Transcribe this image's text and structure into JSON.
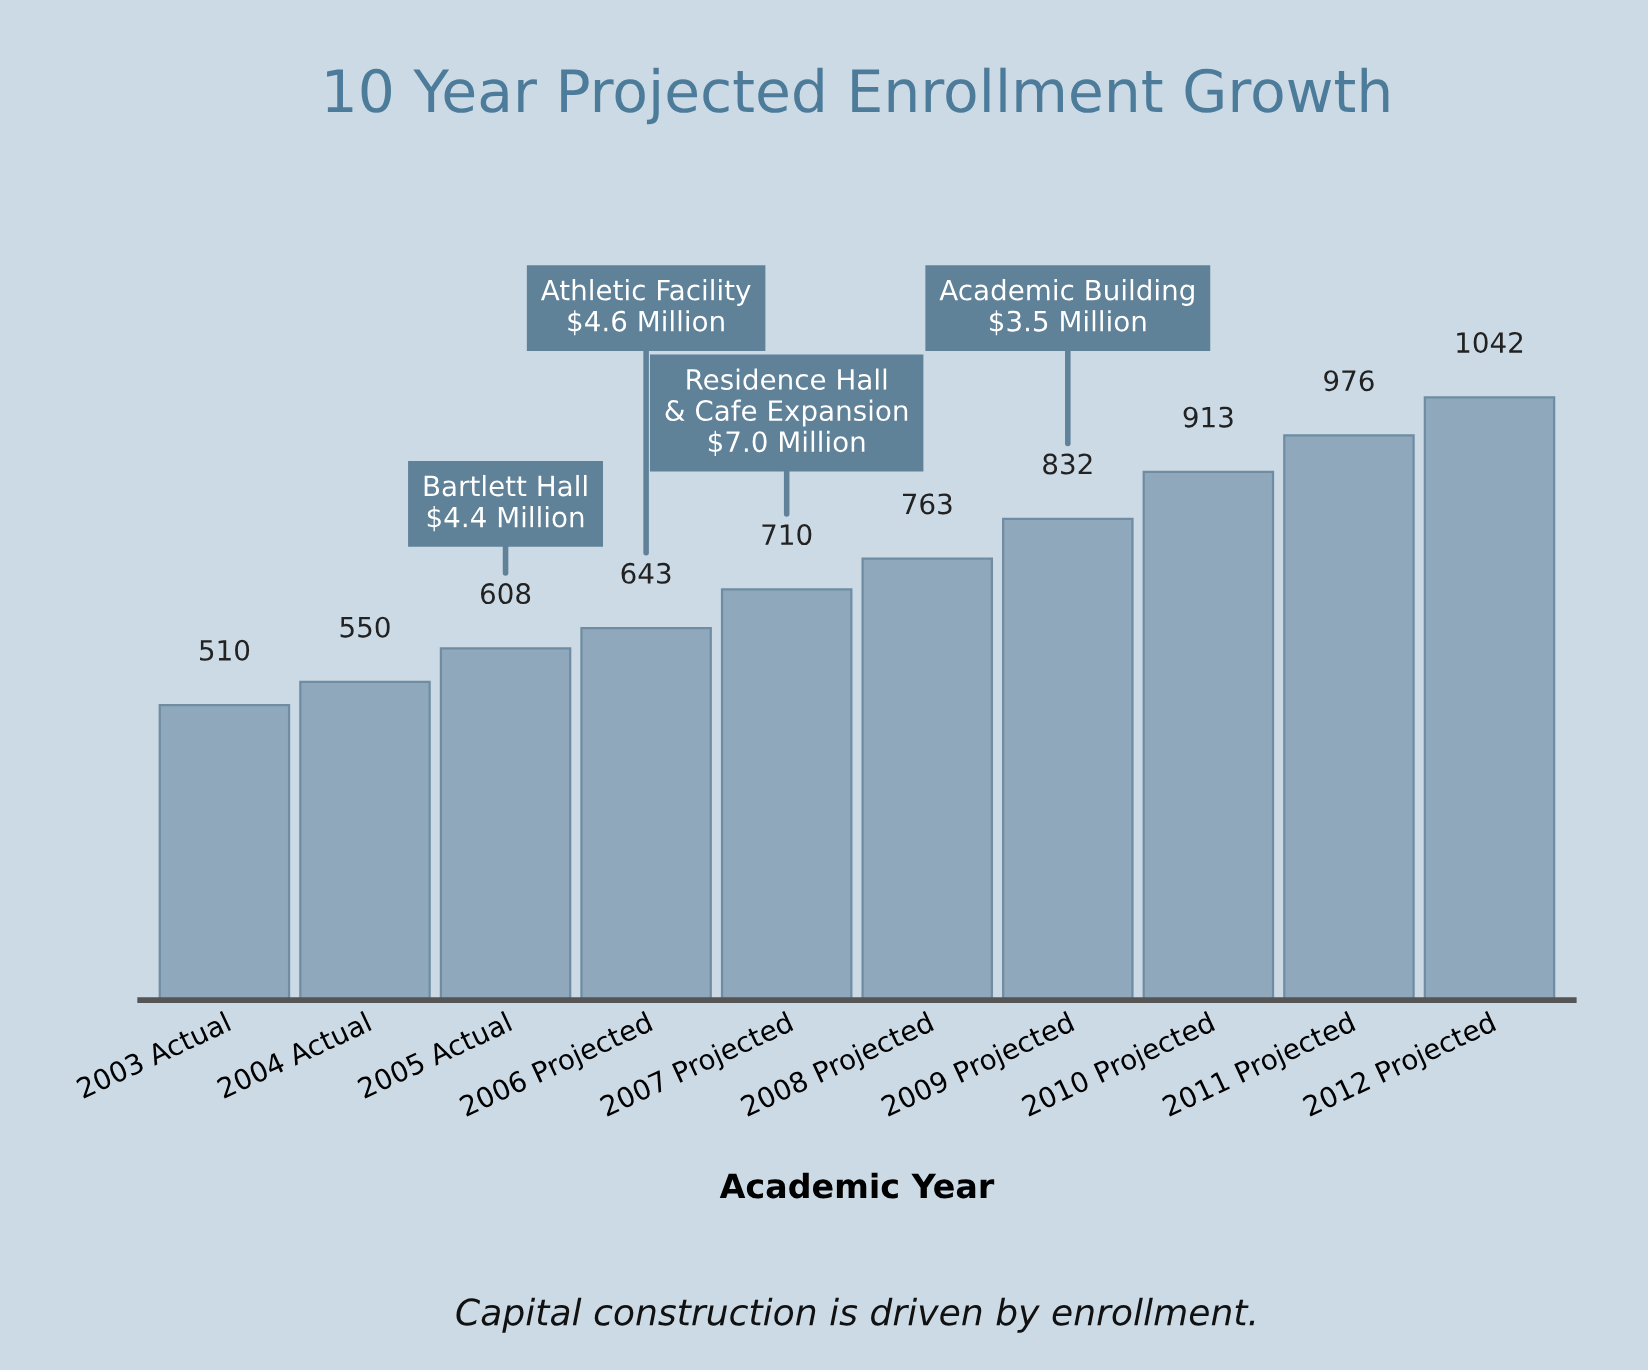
{
  "chart_data": {
    "type": "bar",
    "title": "10 Year Projected Enrollment Growth",
    "xlabel": "Academic Year",
    "categories": [
      "2003 Actual",
      "2004 Actual",
      "2005 Actual",
      "2006 Projected",
      "2007 Projected",
      "2008 Projected",
      "2009 Projected",
      "2010 Projected",
      "2011 Projected",
      "2012 Projected"
    ],
    "values": [
      510,
      550,
      608,
      643,
      710,
      763,
      832,
      913,
      976,
      1042
    ],
    "color": "#8fa8bb",
    "data_labels": true,
    "grid": false,
    "legend": false,
    "annotations": [
      "Bartlett Hall\n$4.4 Million",
      "Athletic Facility\n$4.6 Million",
      "Residence Hall\n& Cafe Expansion\n$7.0 Million",
      "Academic Building\n$3.5 Million",
      "Capital construction is driven by enrollment."
    ]
  }
}
